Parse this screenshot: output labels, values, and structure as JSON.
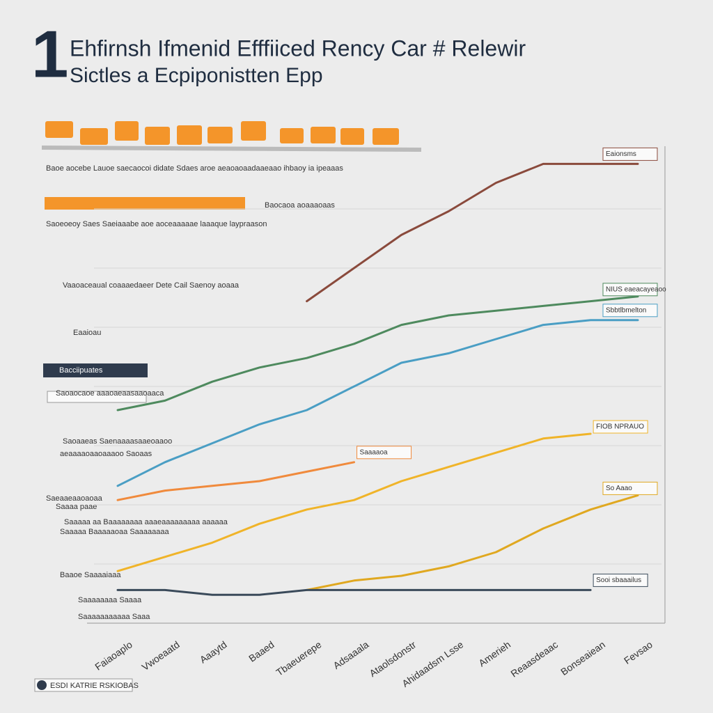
{
  "chart_data": {
    "type": "line",
    "badge": "1",
    "title": "Ehfirnsh Ifmenid Efffiiced Rency Car # Relewir",
    "subtitle": "Sictles a Ecpiponistten Epp",
    "footer": "ESDI KATRIE RSKIOBAS",
    "annotations": [
      "Baoe aocebe Lauoe saecaocoi didate Sdaes aroe aeaoaoaadaaeaao ihbaoy ia ipeaaas",
      "Baocaoa aoaaaoaas",
      "Saoeoeoy Saes Saeiaaabe aoe aoceaaaaae laaaque laypraason",
      "Vaaoaceaual coaaaedaeer Dete Cail Saenoy aoaaa",
      "Eaaioau",
      "Bacciipuates",
      "Saoaocaoe aaaoaeaasaaoaaca",
      "Saoaaeas Saenaaaasaaeoaaoo",
      "aeaaaaoaaoaaaoo Saoaas",
      "Saeaaeaaoaoaa",
      "Saaaa paae",
      "Saaaaa aa Baaaaaaaa aaaeaaaaaaaaa aaaaaa",
      "Saaaaa Baaaaaoaa Saaaaaaaa",
      "Baaoe Saaaaiaaa",
      "Saaaaaaaa Saaaa",
      "Saaaaaaaaaaa Saaa"
    ],
    "categories": [
      "Faiaoaplo",
      "Vwoeaatd",
      "Aaaytd",
      "Baaed",
      "Tbaeuerepe",
      "Adsaaala",
      "Ataolsdonstr",
      "Ahidaadsm Lsse",
      "Amerieh",
      "Reaasdeaac",
      "Bonseaiean",
      "Fevsao"
    ],
    "series": [
      {
        "name": "Eaionsms",
        "color": "#8a4a3c",
        "values": [
          null,
          null,
          null,
          null,
          68,
          75,
          82,
          87,
          93,
          97,
          97,
          97
        ]
      },
      {
        "name": "NIUS eaeacayeaoo",
        "color": "#4e8a5e",
        "values": [
          45,
          47,
          51,
          54,
          56,
          59,
          63,
          65,
          66,
          67,
          68,
          69
        ]
      },
      {
        "name": "Sbbtlbmelton",
        "color": "#4a9ec4",
        "values": [
          29,
          34,
          38,
          42,
          45,
          50,
          55,
          57,
          60,
          63,
          64,
          64
        ]
      },
      {
        "name": "FIOB NPRAUO",
        "color": "#f0b429",
        "values": [
          11,
          14,
          17,
          21,
          24,
          26,
          30,
          33,
          36,
          39,
          40,
          null
        ]
      },
      {
        "name": "Saaaaoa",
        "color": "#f08a3c",
        "values": [
          26,
          28,
          29,
          30,
          32,
          34,
          null,
          null,
          null,
          null,
          null,
          null
        ]
      },
      {
        "name": "So Aaao",
        "color": "#e0a820",
        "values": [
          null,
          null,
          null,
          null,
          7,
          9,
          10,
          12,
          15,
          20,
          24,
          27
        ]
      },
      {
        "name": "Sooi sbaaailus",
        "color": "#3a4a5a",
        "values": [
          7,
          7,
          6,
          6,
          7,
          7,
          7,
          7,
          7,
          7,
          7,
          null
        ]
      }
    ],
    "ylim": [
      0,
      100
    ],
    "grid": true
  }
}
